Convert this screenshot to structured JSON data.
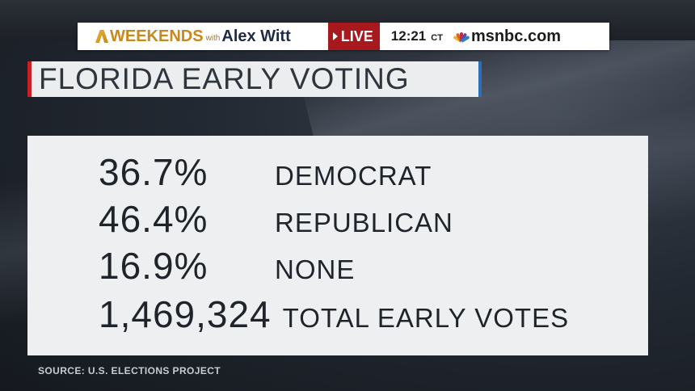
{
  "header": {
    "show_name_main": "WEEKENDS",
    "show_name_with": "with",
    "show_host": "Alex Witt",
    "live_label": "LIVE",
    "time": "12:21",
    "timezone": "CT",
    "network": "msnbc.com"
  },
  "title": "FLORIDA EARLY VOTING",
  "stats": [
    {
      "value": "36.7%",
      "label": "DEMOCRAT"
    },
    {
      "value": "46.4%",
      "label": "REPUBLICAN"
    },
    {
      "value": "16.9%",
      "label": "NONE"
    },
    {
      "value": "1,469,324",
      "label": "TOTAL EARLY VOTES"
    }
  ],
  "source": "SOURCE: U.S. ELECTIONS PROJECT",
  "colors": {
    "live_red": "#a8191e",
    "show_gold": "#c8891c",
    "title_accent_red": "#c72026",
    "title_accent_blue": "#2a6fb7"
  }
}
